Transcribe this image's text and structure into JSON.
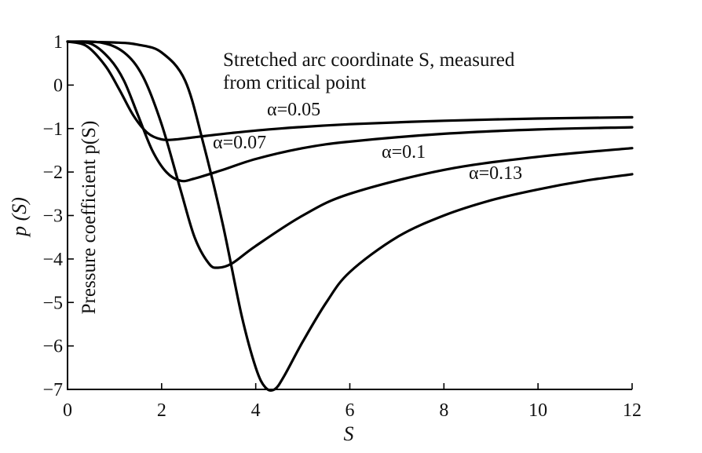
{
  "chart_data": {
    "type": "line",
    "xlabel": "S",
    "ylabel": "p (S)",
    "ylabel_inner": "Pressure coefficient p(S)",
    "annotation_lines": [
      "Stretched arc coordinate S, measured",
      "from critical point"
    ],
    "xlim": [
      0,
      12
    ],
    "ylim": [
      -7,
      1
    ],
    "x_ticks": [
      0,
      2,
      4,
      6,
      8,
      10,
      12
    ],
    "y_ticks": [
      1,
      0,
      -1,
      -2,
      -3,
      -4,
      -5,
      -6,
      -7
    ],
    "x_tick_labels": [
      "0",
      "2",
      "4",
      "6",
      "8",
      "10",
      "12"
    ],
    "y_tick_labels": [
      "1",
      "0",
      "−1",
      "−2",
      "−3",
      "−4",
      "−5",
      "−6",
      "−7"
    ],
    "grid": false,
    "series": [
      {
        "name": "α=0.05",
        "x": [
          0,
          0.4,
          0.8,
          1.1,
          1.4,
          1.7,
          2.0,
          2.3,
          2.7,
          3.5,
          4.5,
          6,
          8,
          10,
          12
        ],
        "y": [
          1,
          0.9,
          0.45,
          -0.1,
          -0.7,
          -1.1,
          -1.25,
          -1.25,
          -1.2,
          -1.1,
          -1.0,
          -0.9,
          -0.82,
          -0.77,
          -0.74
        ]
      },
      {
        "name": "α=0.07",
        "x": [
          0,
          0.5,
          0.9,
          1.2,
          1.5,
          1.8,
          2.1,
          2.4,
          2.7,
          3.3,
          4,
          5,
          6,
          8,
          10,
          12
        ],
        "y": [
          1,
          0.95,
          0.6,
          0.1,
          -0.7,
          -1.5,
          -2.0,
          -2.2,
          -2.15,
          -1.95,
          -1.7,
          -1.45,
          -1.3,
          -1.12,
          -1.02,
          -0.97
        ]
      },
      {
        "name": "α=0.1",
        "x": [
          0,
          0.7,
          1.2,
          1.6,
          2.0,
          2.4,
          2.7,
          3.0,
          3.2,
          3.5,
          4.0,
          5.0,
          6.0,
          8.0,
          10.0,
          12.0
        ],
        "y": [
          1,
          0.98,
          0.75,
          0.2,
          -0.9,
          -2.4,
          -3.5,
          -4.1,
          -4.2,
          -4.1,
          -3.7,
          -3.0,
          -2.5,
          -1.95,
          -1.65,
          -1.45
        ]
      },
      {
        "name": "α=0.13",
        "x": [
          0,
          1.0,
          1.5,
          2.0,
          2.5,
          2.9,
          3.3,
          3.7,
          4.0,
          4.2,
          4.4,
          4.6,
          5.0,
          5.5,
          6.0,
          7.0,
          8.0,
          9.0,
          10.0,
          11.0,
          12.0
        ],
        "y": [
          1,
          0.98,
          0.93,
          0.75,
          0.1,
          -1.4,
          -3.2,
          -5.3,
          -6.5,
          -6.95,
          -7.0,
          -6.7,
          -5.9,
          -5.0,
          -4.3,
          -3.5,
          -3.0,
          -2.65,
          -2.4,
          -2.2,
          -2.05
        ]
      }
    ]
  }
}
